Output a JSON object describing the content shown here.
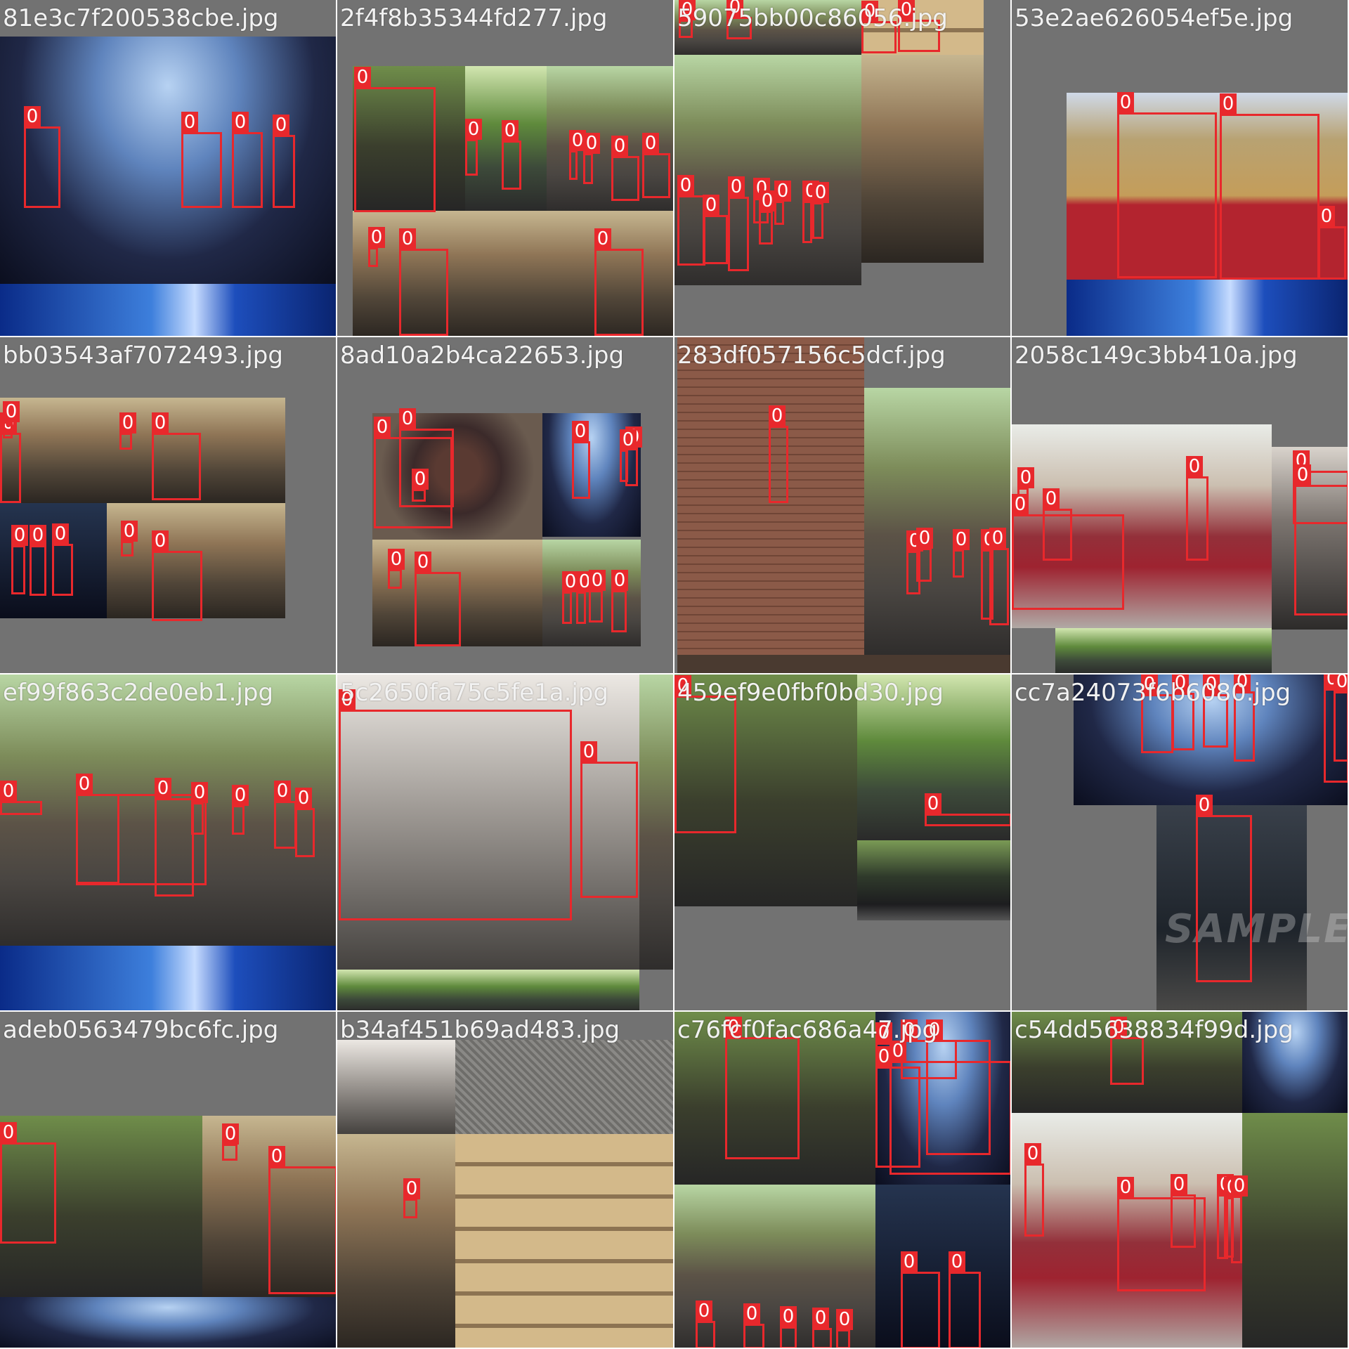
{
  "mosaic": {
    "tiles": [
      {
        "name": "81e3c7f200538cbe.jpg",
        "labels": [
          "0",
          "0",
          "0",
          "0"
        ]
      },
      {
        "name": "2f4f8b35344fd277.jpg",
        "labels": [
          "0",
          "0",
          "0",
          "0",
          "0",
          "0",
          "0",
          "0",
          "0",
          "0"
        ]
      },
      {
        "name": "59075bb00c86056.jpg",
        "labels": [
          "0",
          "0",
          "0",
          "0",
          "0",
          "0",
          "0",
          "0",
          "0",
          "0",
          "0",
          "0"
        ]
      },
      {
        "name": "53e2ae626054ef5e.jpg",
        "labels": [
          "0",
          "0",
          "0"
        ]
      },
      {
        "name": "bb03543af7072493.jpg",
        "labels": [
          "0",
          "0",
          "0",
          "0",
          "0",
          "0",
          "0",
          "0",
          "0"
        ]
      },
      {
        "name": "8ad10a2b4ca22653.jpg",
        "labels": [
          "0",
          "0",
          "0",
          "0",
          "0",
          "0",
          "0",
          "0",
          "0",
          "0",
          "0",
          "0"
        ]
      },
      {
        "name": "283df057156c5dcf.jpg",
        "labels": [
          "0",
          "0",
          "0",
          "0",
          "0",
          "0"
        ]
      },
      {
        "name": "2058c149c3bb410a.jpg",
        "labels": [
          "0",
          "0",
          "0",
          "0",
          "0",
          "0"
        ]
      },
      {
        "name": "ef99f863c2de0eb1.jpg",
        "labels": [
          "0",
          "0",
          "0",
          "0",
          "0",
          "0",
          "0",
          "0"
        ]
      },
      {
        "name": "5c2650fa75c5fe1a.jpg",
        "labels": [
          "0",
          "0"
        ]
      },
      {
        "name": "459ef9e0fbf0bd30.jpg",
        "labels": [
          "0",
          "0"
        ]
      },
      {
        "name": "cc7a24073f6b6080.jpg",
        "labels": [
          "0",
          "0",
          "0",
          "0",
          "0",
          "0",
          "0"
        ]
      },
      {
        "name": "adeb0563479bc6fc.jpg",
        "labels": [
          "0",
          "0",
          "0"
        ]
      },
      {
        "name": "b34af451b69ad483.jpg",
        "labels": [
          "0"
        ]
      },
      {
        "name": "c76fcf0fac686a47.jpg",
        "labels": [
          "0",
          "0",
          "0",
          "0",
          "0",
          "0",
          "0",
          "0",
          "0",
          "0",
          "0",
          "0",
          "0"
        ]
      },
      {
        "name": "c54dd5638834f99d.jpg",
        "labels": [
          "0",
          "0",
          "0",
          "0",
          "0",
          "0",
          "0"
        ]
      }
    ],
    "colors": {
      "box": "#e8282c",
      "label_text": "#ffffff",
      "tile_bg": "#727272",
      "border": "#ffffff"
    },
    "watermark": "SAMPLE"
  }
}
